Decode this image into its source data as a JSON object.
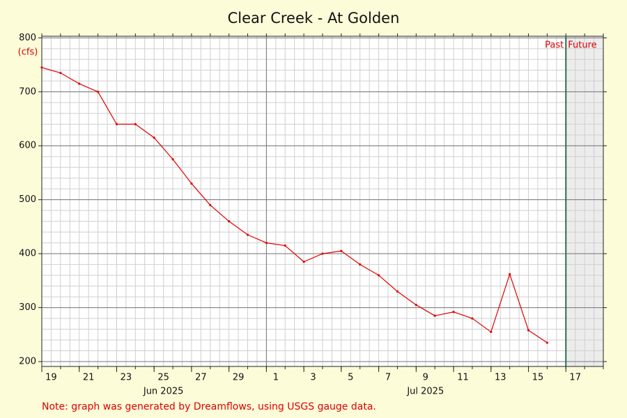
{
  "chart_data": {
    "type": "line",
    "title": "Clear Creek - At Golden",
    "y_unit": "(cfs)",
    "x": [
      "2025-06-19",
      "2025-06-20",
      "2025-06-21",
      "2025-06-22",
      "2025-06-23",
      "2025-06-24",
      "2025-06-25",
      "2025-06-26",
      "2025-06-27",
      "2025-06-28",
      "2025-06-29",
      "2025-06-30",
      "2025-07-01",
      "2025-07-02",
      "2025-07-03",
      "2025-07-04",
      "2025-07-05",
      "2025-07-06",
      "2025-07-07",
      "2025-07-08",
      "2025-07-09",
      "2025-07-10",
      "2025-07-11",
      "2025-07-12",
      "2025-07-13",
      "2025-07-14",
      "2025-07-15",
      "2025-07-16"
    ],
    "values": [
      745,
      735,
      715,
      700,
      640,
      640,
      615,
      575,
      530,
      490,
      460,
      435,
      420,
      415,
      385,
      400,
      405,
      380,
      360,
      330,
      305,
      285,
      292,
      280,
      255,
      362,
      258,
      235
    ],
    "color": "#e00000",
    "xlim": [
      "2025-06-19",
      "2025-07-19"
    ],
    "xticks": [
      {
        "value": "2025-06-19",
        "label": "19"
      },
      {
        "value": "2025-06-21",
        "label": "21"
      },
      {
        "value": "2025-06-23",
        "label": "23"
      },
      {
        "value": "2025-06-25",
        "label": "25"
      },
      {
        "value": "2025-06-27",
        "label": "27"
      },
      {
        "value": "2025-06-29",
        "label": "29"
      },
      {
        "value": "2025-07-01",
        "label": "1"
      },
      {
        "value": "2025-07-03",
        "label": "3"
      },
      {
        "value": "2025-07-05",
        "label": "5"
      },
      {
        "value": "2025-07-07",
        "label": "7"
      },
      {
        "value": "2025-07-09",
        "label": "9"
      },
      {
        "value": "2025-07-11",
        "label": "11"
      },
      {
        "value": "2025-07-13",
        "label": "13"
      },
      {
        "value": "2025-07-15",
        "label": "15"
      },
      {
        "value": "2025-07-17",
        "label": "17"
      }
    ],
    "month_labels": [
      {
        "value": "2025-06-25",
        "label": "Jun 2025"
      },
      {
        "value": "2025-07-09",
        "label": "Jul 2025"
      }
    ],
    "month_start": "2025-07-01",
    "ylim": [
      191,
      803
    ],
    "yticks": [
      200,
      300,
      400,
      500,
      600,
      700,
      800
    ],
    "grid": true,
    "now": "2025-07-17",
    "past_label": "Past",
    "future_label": "Future",
    "note": "Note: graph was generated by Dreamflows, using USGS gauge data."
  }
}
